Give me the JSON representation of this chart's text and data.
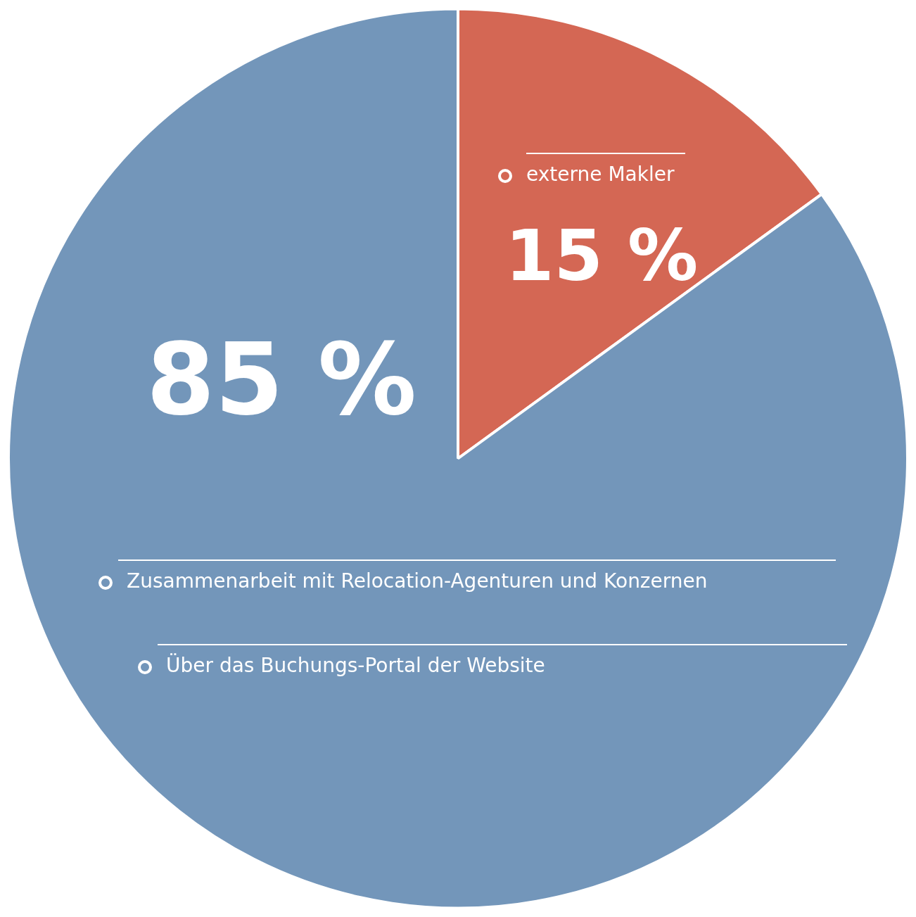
{
  "chart_data": {
    "type": "pie",
    "categories": [
      "externe Makler",
      null
    ],
    "values": [
      15,
      85
    ],
    "colors": [
      "#d46754",
      "#7396ba"
    ],
    "value_labels": [
      "15 %",
      "85 %"
    ],
    "annotations": [
      "Zusammenarbeit mit Relocation-Agenturen und Konzernen",
      "Über das Buchungs-Portal der Website"
    ],
    "legend": "top right"
  }
}
